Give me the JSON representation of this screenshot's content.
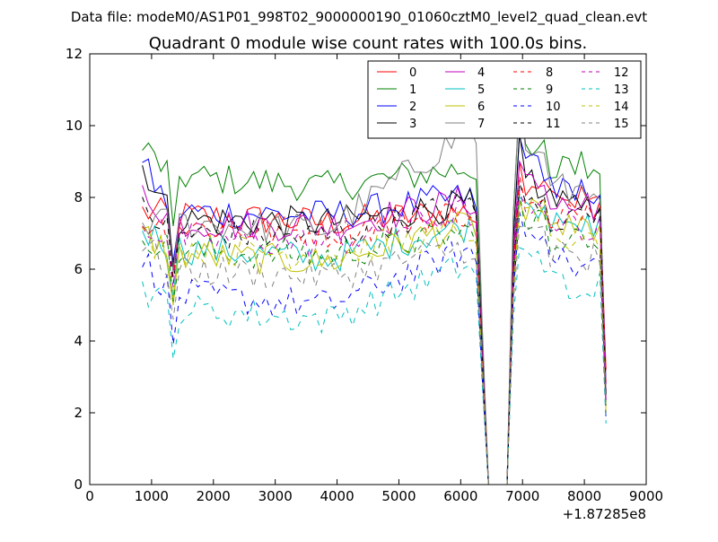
{
  "chart_data": {
    "type": "line",
    "suptitle": "Data file: modeM0/AS1P01_998T02_9000000190_01060cztM0_level2_quad_clean.evt",
    "title": "Quadrant 0 module wise count rates with 100.0s bins.",
    "xlabel": "",
    "ylabel": "",
    "x_offset_label": "+1.87285e8",
    "xlim": [
      0,
      9000
    ],
    "ylim": [
      0,
      12
    ],
    "x_ticks": [
      0,
      1000,
      2000,
      3000,
      4000,
      5000,
      6000,
      7000,
      8000,
      9000
    ],
    "y_ticks": [
      0,
      2,
      4,
      6,
      8,
      10,
      12
    ],
    "x_start": 850,
    "x_step": 100,
    "points_per_series": 76,
    "gap_indices": [
      57,
      58,
      59
    ],
    "legend_location": "upper-right",
    "legend_columns": 4,
    "series": [
      {
        "name": "0",
        "color": "#ff0000",
        "dashed": false,
        "level": 7.5,
        "start": 7.6,
        "mid": 7.3,
        "end_level": 7.9,
        "dip_at_6000": 7.6,
        "peak_after_gap": 9.0,
        "last": 3.2
      },
      {
        "name": "1",
        "color": "#008000",
        "dashed": false,
        "level": 8.6,
        "start": 9.4,
        "mid": 8.3,
        "end_level": 8.9,
        "dip_at_6000": 8.8,
        "peak_after_gap": 10.7,
        "last": 2.3
      },
      {
        "name": "2",
        "color": "#0000ff",
        "dashed": false,
        "level": 7.6,
        "start": 8.9,
        "mid": 7.5,
        "end_level": 8.2,
        "dip_at_6000": 8.0,
        "peak_after_gap": 9.7,
        "last": 2.8
      },
      {
        "name": "3",
        "color": "#000000",
        "dashed": false,
        "level": 7.4,
        "start": 8.9,
        "mid": 7.3,
        "end_level": 7.8,
        "dip_at_6000": 7.8,
        "peak_after_gap": 9.8,
        "last": 2.5
      },
      {
        "name": "4",
        "color": "#bf00bf",
        "dashed": false,
        "level": 7.3,
        "start": 8.2,
        "mid": 7.2,
        "end_level": 7.7,
        "dip_at_6000": 7.9,
        "peak_after_gap": 9.0,
        "last": 2.6
      },
      {
        "name": "5",
        "color": "#00bfbf",
        "dashed": false,
        "level": 6.6,
        "start": 7.1,
        "mid": 6.3,
        "end_level": 7.2,
        "dip_at_6000": 7.2,
        "peak_after_gap": 8.0,
        "last": 2.2
      },
      {
        "name": "6",
        "color": "#bfbf00",
        "dashed": false,
        "level": 6.4,
        "start": 7.0,
        "mid": 6.2,
        "end_level": 7.1,
        "dip_at_6000": 7.2,
        "peak_after_gap": 7.9,
        "last": 2.0
      },
      {
        "name": "7",
        "color": "#808080",
        "dashed": false,
        "level": 7.3,
        "start": 7.3,
        "mid": 7.1,
        "end_level": 8.3,
        "dip_at_6000": 9.8,
        "peak_after_gap": 10.8,
        "last": 2.6
      },
      {
        "name": "8",
        "color": "#ff0000",
        "dashed": true,
        "level": 7.2,
        "start": 7.3,
        "mid": 7.0,
        "end_level": 7.6,
        "dip_at_6000": 7.6,
        "peak_after_gap": 8.6,
        "last": 2.7
      },
      {
        "name": "9",
        "color": "#008000",
        "dashed": true,
        "level": 6.5,
        "start": 7.0,
        "mid": 6.4,
        "end_level": 6.9,
        "dip_at_6000": 7.0,
        "peak_after_gap": 8.1,
        "last": 2.2
      },
      {
        "name": "10",
        "color": "#0000ff",
        "dashed": true,
        "level": 5.3,
        "start": 6.3,
        "mid": 5.0,
        "end_level": 6.2,
        "dip_at_6000": 6.5,
        "peak_after_gap": 7.6,
        "last": 1.8
      },
      {
        "name": "11",
        "color": "#000000",
        "dashed": true,
        "level": 7.0,
        "start": 7.7,
        "mid": 6.9,
        "end_level": 7.5,
        "dip_at_6000": 7.8,
        "peak_after_gap": 8.4,
        "last": 2.4
      },
      {
        "name": "12",
        "color": "#bf00bf",
        "dashed": true,
        "level": 6.9,
        "start": 7.2,
        "mid": 6.7,
        "end_level": 7.2,
        "dip_at_6000": 7.6,
        "peak_after_gap": 8.2,
        "last": 2.3
      },
      {
        "name": "13",
        "color": "#00bfbf",
        "dashed": true,
        "level": 4.9,
        "start": 5.5,
        "mid": 4.6,
        "end_level": 5.6,
        "dip_at_6000": 6.1,
        "peak_after_gap": 6.6,
        "last": 1.7
      },
      {
        "name": "14",
        "color": "#bfbf00",
        "dashed": true,
        "level": 6.6,
        "start": 6.8,
        "mid": 6.4,
        "end_level": 6.9,
        "dip_at_6000": 7.1,
        "peak_after_gap": 7.6,
        "last": 2.1
      },
      {
        "name": "15",
        "color": "#808080",
        "dashed": true,
        "level": 6.0,
        "start": 6.7,
        "mid": 5.8,
        "end_level": 6.3,
        "dip_at_6000": 6.6,
        "peak_after_gap": 7.2,
        "last": 2.0
      }
    ]
  }
}
